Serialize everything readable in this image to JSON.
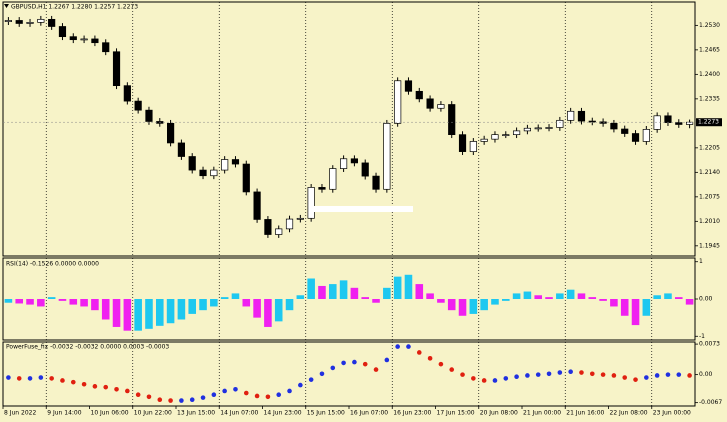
{
  "chart_data": [
    {
      "type": "candlestick",
      "title": "GBPUSD,H1  1.2267 1.2280 1.2257 1.2273",
      "categories": [
        "8 Jun 2022",
        null,
        null,
        null,
        "9 Jun 14:00",
        null,
        null,
        null,
        "10 Jun 06:00",
        null,
        null,
        null,
        "10 Jun 22:00",
        null,
        null,
        null,
        "13 Jun 15:00",
        null,
        null,
        null,
        "14 Jun 07:00",
        null,
        null,
        null,
        "14 Jun 23:00",
        null,
        null,
        null,
        "15 Jun 15:00",
        null,
        null,
        null,
        "16 Jun 07:00",
        null,
        null,
        null,
        "16 Jun 23:00",
        null,
        null,
        null,
        "17 Jun 15:00",
        null,
        null,
        null,
        "20 Jun 08:00",
        null,
        null,
        null,
        "21 Jun 00:00",
        null,
        null,
        null,
        "21 Jun 16:00",
        null,
        null,
        null,
        "22 Jun 08:00",
        null,
        null,
        null,
        "23 Jun 00:00",
        null,
        null,
        null
      ],
      "open": [
        1.254,
        1.2543,
        1.2535,
        1.2538,
        1.2546,
        1.2527,
        1.25,
        1.2492,
        1.2494,
        1.2484,
        1.246,
        1.237,
        1.2329,
        1.2305,
        1.2275,
        1.227,
        1.2218,
        1.2182,
        1.2146,
        1.2131,
        1.2146,
        1.2174,
        1.2162,
        1.2088,
        1.2015,
        1.1975,
        1.199,
        1.2016,
        1.2018,
        1.21,
        1.2095,
        1.215,
        1.2176,
        1.2165,
        1.213,
        1.2095,
        1.227,
        1.2383,
        1.2355,
        1.2335,
        1.231,
        1.232,
        1.224,
        1.2195,
        1.2222,
        1.2228,
        1.224,
        1.224,
        1.225,
        1.2257,
        1.2258,
        1.2259,
        1.2278,
        1.2302,
        1.2276,
        1.2274,
        1.227,
        1.2255,
        1.2243,
        1.2222,
        1.2254,
        1.229,
        1.2272,
        1.2267
      ],
      "high": [
        1.2552,
        1.2552,
        1.2547,
        1.2555,
        1.2555,
        1.2536,
        1.2509,
        1.2503,
        1.2503,
        1.2493,
        1.2469,
        1.2379,
        1.2338,
        1.2314,
        1.2284,
        1.2279,
        1.2227,
        1.2191,
        1.2155,
        1.2155,
        1.2183,
        1.2183,
        1.2171,
        1.2097,
        1.2024,
        1.1999,
        1.2025,
        1.2027,
        1.2109,
        1.2109,
        1.2159,
        1.2185,
        1.2185,
        1.2174,
        1.2139,
        1.2279,
        1.2392,
        1.2392,
        1.2364,
        1.2344,
        1.2329,
        1.2329,
        1.2249,
        1.2231,
        1.2237,
        1.2249,
        1.2249,
        1.2259,
        1.2266,
        1.2267,
        1.2268,
        1.2287,
        1.2311,
        1.2311,
        1.2285,
        1.2283,
        1.2279,
        1.2264,
        1.2252,
        1.2263,
        1.2299,
        1.2299,
        1.2281,
        1.228
      ],
      "low": [
        1.2531,
        1.2526,
        1.2526,
        1.2529,
        1.2518,
        1.2491,
        1.2483,
        1.2483,
        1.2475,
        1.2451,
        1.2361,
        1.232,
        1.2296,
        1.2266,
        1.2261,
        1.2209,
        1.2173,
        1.2137,
        1.2122,
        1.2122,
        1.2137,
        1.2153,
        1.2079,
        1.2006,
        1.1966,
        1.1966,
        1.1981,
        1.2007,
        1.2009,
        1.2086,
        1.2086,
        1.2141,
        1.2156,
        1.2121,
        1.2086,
        1.2086,
        1.2261,
        1.2346,
        1.2326,
        1.2301,
        1.2301,
        1.2231,
        1.2186,
        1.2186,
        1.2213,
        1.2219,
        1.2231,
        1.2231,
        1.2241,
        1.2248,
        1.2249,
        1.225,
        1.2269,
        1.2267,
        1.2265,
        1.2261,
        1.2246,
        1.2234,
        1.2213,
        1.2213,
        1.2245,
        1.2263,
        1.2258,
        1.2257
      ],
      "close": [
        1.2543,
        1.2535,
        1.2538,
        1.2546,
        1.2527,
        1.25,
        1.2492,
        1.2494,
        1.2484,
        1.246,
        1.237,
        1.2329,
        1.2305,
        1.2275,
        1.227,
        1.2218,
        1.2182,
        1.2146,
        1.2131,
        1.2146,
        1.2174,
        1.2162,
        1.2088,
        1.2015,
        1.1975,
        1.199,
        1.2016,
        1.2018,
        1.21,
        1.2095,
        1.215,
        1.2176,
        1.2165,
        1.213,
        1.2095,
        1.227,
        1.2383,
        1.2355,
        1.2335,
        1.231,
        1.232,
        1.224,
        1.2195,
        1.2222,
        1.2228,
        1.224,
        1.224,
        1.225,
        1.2257,
        1.2258,
        1.2259,
        1.2278,
        1.2302,
        1.2276,
        1.2274,
        1.227,
        1.2255,
        1.2243,
        1.2222,
        1.2254,
        1.229,
        1.2272,
        1.2267,
        1.2273
      ],
      "up_color": "#ffffff",
      "down_color": "#000000",
      "ylim": [
        1.1918,
        1.2592
      ],
      "yticks": [
        1.1945,
        {
          "value": 1.201,
          "label": "1.2010"
        },
        1.2075,
        {
          "value": 1.214,
          "label": "1.2140"
        },
        1.2205,
        1.2335,
        {
          "value": 1.24,
          "label": "1.2400"
        },
        1.2465,
        {
          "value": 1.253,
          "label": "1.2530"
        }
      ]
    },
    {
      "type": "bar",
      "title": "RSI(14) -0.1526 0.0000 0.0000",
      "values": [
        -0.1,
        -0.12,
        -0.15,
        -0.2,
        0.05,
        -0.05,
        -0.15,
        -0.2,
        -0.3,
        -0.55,
        -0.75,
        -0.85,
        -0.85,
        -0.8,
        -0.72,
        -0.65,
        -0.55,
        -0.4,
        -0.3,
        -0.2,
        0.05,
        0.15,
        -0.2,
        -0.5,
        -0.75,
        -0.6,
        -0.3,
        0.1,
        0.55,
        0.35,
        0.4,
        0.5,
        0.3,
        0.05,
        -0.1,
        0.3,
        0.6,
        0.65,
        0.4,
        0.15,
        -0.1,
        -0.3,
        -0.45,
        -0.4,
        -0.3,
        -0.15,
        -0.05,
        0.15,
        0.2,
        0.1,
        0.05,
        0.15,
        0.25,
        0.15,
        0.05,
        -0.05,
        -0.2,
        -0.45,
        -0.7,
        -0.45,
        0.1,
        0.15,
        0.05,
        -0.15
      ],
      "up_color": "#1ec8f0",
      "down_color": "#f020f0",
      "ylim": [
        -1.1,
        1.1
      ],
      "yticks": [
        1,
        {
          "value": 0,
          "label": "0.00"
        },
        -1
      ]
    },
    {
      "type": "dots",
      "title": "PowerFuse_fix -0.0032 -0.0032 0.0000 0.0003 -0.0003",
      "values": [
        -0.0007,
        -0.0009,
        -0.0009,
        -0.0007,
        -0.0009,
        -0.0014,
        -0.0018,
        -0.0023,
        -0.0028,
        -0.003,
        -0.0035,
        -0.0039,
        -0.0048,
        -0.0053,
        -0.006,
        -0.0062,
        -0.0062,
        -0.006,
        -0.0055,
        -0.0048,
        -0.0039,
        -0.0035,
        -0.0044,
        -0.0051,
        -0.0053,
        -0.0048,
        -0.0039,
        -0.0025,
        -0.0012,
        0.0002,
        0.0016,
        0.0028,
        0.003,
        0.0025,
        0.0012,
        0.0035,
        0.0067,
        0.0067,
        0.0053,
        0.0039,
        0.0025,
        0.0012,
        0,
        -0.0009,
        -0.0014,
        -0.0014,
        -0.0009,
        -0.0005,
        -0.0002,
        0,
        0.0002,
        0.0005,
        0.0007,
        0.0005,
        0.0002,
        0,
        -0.0002,
        -0.0007,
        -0.0012,
        -0.0007,
        -0.0002,
        0,
        0,
        -0.0002
      ],
      "up_color": "#2030e0",
      "down_color": "#e02010",
      "ylim": [
        -0.0075,
        0.0078
      ],
      "yticks": [
        0.0073,
        {
          "value": 0,
          "label": "0.00"
        },
        -0.0067
      ]
    }
  ]
}
